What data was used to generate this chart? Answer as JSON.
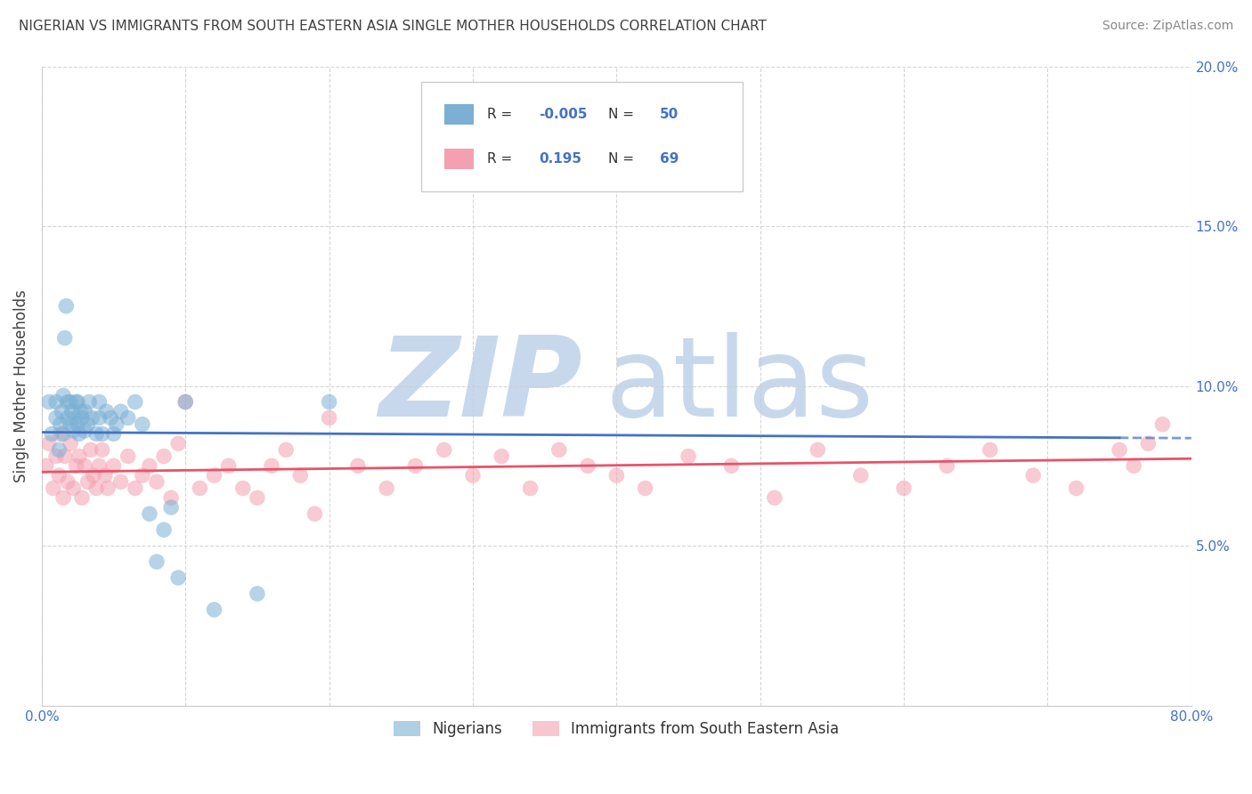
{
  "title": "NIGERIAN VS IMMIGRANTS FROM SOUTH EASTERN ASIA SINGLE MOTHER HOUSEHOLDS CORRELATION CHART",
  "source": "Source: ZipAtlas.com",
  "ylabel": "Single Mother Households",
  "xlim": [
    0.0,
    0.8
  ],
  "ylim": [
    0.0,
    0.2
  ],
  "xticks": [
    0.0,
    0.1,
    0.2,
    0.3,
    0.4,
    0.5,
    0.6,
    0.7,
    0.8
  ],
  "yticks": [
    0.0,
    0.05,
    0.1,
    0.15,
    0.2
  ],
  "xtick_labels": [
    "0.0%",
    "",
    "",
    "",
    "",
    "",
    "",
    "",
    "80.0%"
  ],
  "ytick_labels": [
    "",
    "5.0%",
    "10.0%",
    "15.0%",
    "20.0%"
  ],
  "blue_color": "#7BAFD4",
  "pink_color": "#F4A0B0",
  "blue_R": "-0.005",
  "blue_N": "50",
  "pink_R": "0.195",
  "pink_N": "69",
  "blue_line_color": "#4472C4",
  "pink_line_color": "#E8536A",
  "watermark_zip": "ZIP",
  "watermark_atlas": "atlas",
  "watermark_color": "#C8D8EC",
  "background_color": "#FFFFFF",
  "grid_color": "#CCCCCC",
  "title_color": "#404040",
  "axis_label_color": "#404040",
  "tick_color": "#4472C4",
  "legend_R_color": "#4472C4",
  "nigerians_x": [
    0.005,
    0.007,
    0.01,
    0.01,
    0.012,
    0.013,
    0.014,
    0.015,
    0.015,
    0.016,
    0.017,
    0.018,
    0.018,
    0.02,
    0.02,
    0.021,
    0.022,
    0.023,
    0.024,
    0.025,
    0.025,
    0.026,
    0.027,
    0.028,
    0.03,
    0.03,
    0.032,
    0.033,
    0.035,
    0.038,
    0.04,
    0.04,
    0.042,
    0.045,
    0.048,
    0.05,
    0.052,
    0.055,
    0.06,
    0.065,
    0.07,
    0.075,
    0.08,
    0.085,
    0.09,
    0.095,
    0.1,
    0.12,
    0.15,
    0.2
  ],
  "nigerians_y": [
    0.095,
    0.085,
    0.09,
    0.095,
    0.08,
    0.088,
    0.092,
    0.085,
    0.097,
    0.115,
    0.125,
    0.09,
    0.095,
    0.088,
    0.095,
    0.092,
    0.086,
    0.09,
    0.095,
    0.088,
    0.095,
    0.085,
    0.092,
    0.09,
    0.092,
    0.086,
    0.088,
    0.095,
    0.09,
    0.085,
    0.09,
    0.095,
    0.085,
    0.092,
    0.09,
    0.085,
    0.088,
    0.092,
    0.09,
    0.095,
    0.088,
    0.06,
    0.045,
    0.055,
    0.062,
    0.04,
    0.095,
    0.03,
    0.035,
    0.095
  ],
  "immigrants_x": [
    0.003,
    0.005,
    0.008,
    0.01,
    0.012,
    0.013,
    0.015,
    0.016,
    0.018,
    0.02,
    0.022,
    0.024,
    0.026,
    0.028,
    0.03,
    0.032,
    0.034,
    0.036,
    0.038,
    0.04,
    0.042,
    0.044,
    0.046,
    0.05,
    0.055,
    0.06,
    0.065,
    0.07,
    0.075,
    0.08,
    0.085,
    0.09,
    0.095,
    0.1,
    0.11,
    0.12,
    0.13,
    0.14,
    0.15,
    0.16,
    0.17,
    0.18,
    0.19,
    0.2,
    0.22,
    0.24,
    0.26,
    0.28,
    0.3,
    0.32,
    0.34,
    0.36,
    0.38,
    0.4,
    0.42,
    0.45,
    0.48,
    0.51,
    0.54,
    0.57,
    0.6,
    0.63,
    0.66,
    0.69,
    0.72,
    0.75,
    0.76,
    0.77,
    0.78
  ],
  "immigrants_y": [
    0.075,
    0.082,
    0.068,
    0.078,
    0.072,
    0.085,
    0.065,
    0.078,
    0.07,
    0.082,
    0.068,
    0.075,
    0.078,
    0.065,
    0.075,
    0.07,
    0.08,
    0.072,
    0.068,
    0.075,
    0.08,
    0.072,
    0.068,
    0.075,
    0.07,
    0.078,
    0.068,
    0.072,
    0.075,
    0.07,
    0.078,
    0.065,
    0.082,
    0.095,
    0.068,
    0.072,
    0.075,
    0.068,
    0.065,
    0.075,
    0.08,
    0.072,
    0.06,
    0.09,
    0.075,
    0.068,
    0.075,
    0.08,
    0.072,
    0.078,
    0.068,
    0.08,
    0.075,
    0.072,
    0.068,
    0.078,
    0.075,
    0.065,
    0.08,
    0.072,
    0.068,
    0.075,
    0.08,
    0.072,
    0.068,
    0.08,
    0.075,
    0.082,
    0.088
  ]
}
